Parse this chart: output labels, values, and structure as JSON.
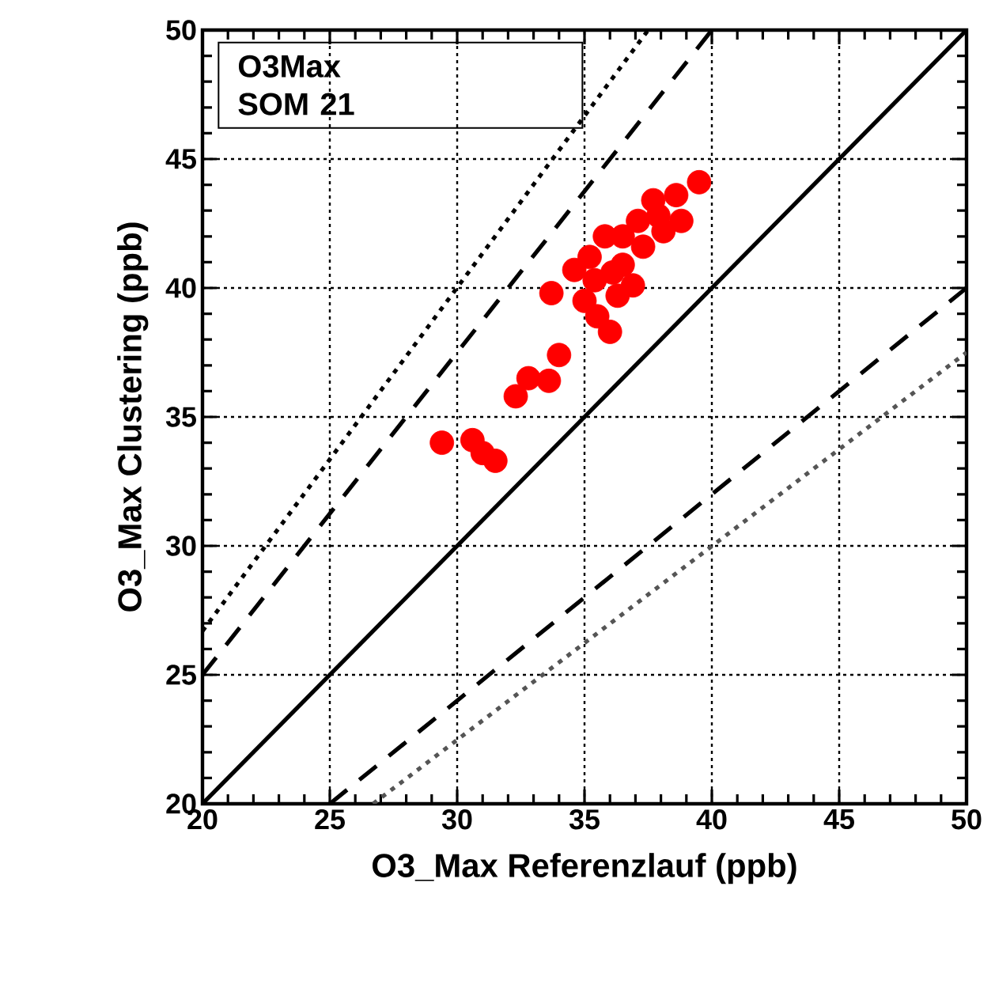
{
  "chart_data": {
    "type": "scatter",
    "xlabel": "O3_Max Referenzlauf (ppb)",
    "ylabel": "O3_Max Clustering (ppb)",
    "annotations": [
      "O3Max",
      "SOM 21"
    ],
    "xlim": [
      20,
      50
    ],
    "ylim": [
      20,
      50
    ],
    "xticks": [
      20,
      25,
      30,
      35,
      40,
      45,
      50
    ],
    "yticks": [
      20,
      25,
      30,
      35,
      40,
      45,
      50
    ],
    "grid": true,
    "series": [
      {
        "type": "line",
        "color": "#000000",
        "line_style": "solid",
        "marker": "none",
        "x": [
          20,
          50
        ],
        "values": [
          20,
          50
        ]
      },
      {
        "type": "line",
        "color": "#000000",
        "line_style": "dashed",
        "marker": "none",
        "x": [
          20,
          40
        ],
        "values": [
          25,
          50
        ]
      },
      {
        "type": "line",
        "color": "#000000",
        "line_style": "dashed",
        "marker": "none",
        "x": [
          25,
          50
        ],
        "values": [
          20,
          40
        ]
      },
      {
        "type": "line",
        "color": "#000000",
        "line_style": "dotted",
        "marker": "none",
        "x": [
          20,
          37.5
        ],
        "values": [
          26.7,
          50
        ]
      },
      {
        "type": "line",
        "color": "#555555",
        "line_style": "dotted",
        "marker": "none",
        "x": [
          26.7,
          50
        ],
        "values": [
          20,
          37.5
        ]
      },
      {
        "color": "#ff0000",
        "marker": "circle",
        "x": [
          29.4,
          30.6,
          31.0,
          31.5,
          32.3,
          32.8,
          33.6,
          34.0,
          33.7,
          34.6,
          35.2,
          35.0,
          35.5,
          36.0,
          35.8,
          36.1,
          36.5,
          36.5,
          36.9,
          37.3,
          37.1,
          37.7,
          38.1,
          38.6,
          38.8,
          39.5,
          36.3,
          35.4,
          37.4,
          37.9
        ],
        "values": [
          34.0,
          34.1,
          33.6,
          33.3,
          35.8,
          36.5,
          36.4,
          37.4,
          39.8,
          40.7,
          41.2,
          39.5,
          38.9,
          38.3,
          42.0,
          40.6,
          40.9,
          42.0,
          40.1,
          41.6,
          42.6,
          43.4,
          42.2,
          43.6,
          42.6,
          44.1,
          39.7,
          40.3,
          null,
          42.8
        ]
      }
    ]
  }
}
